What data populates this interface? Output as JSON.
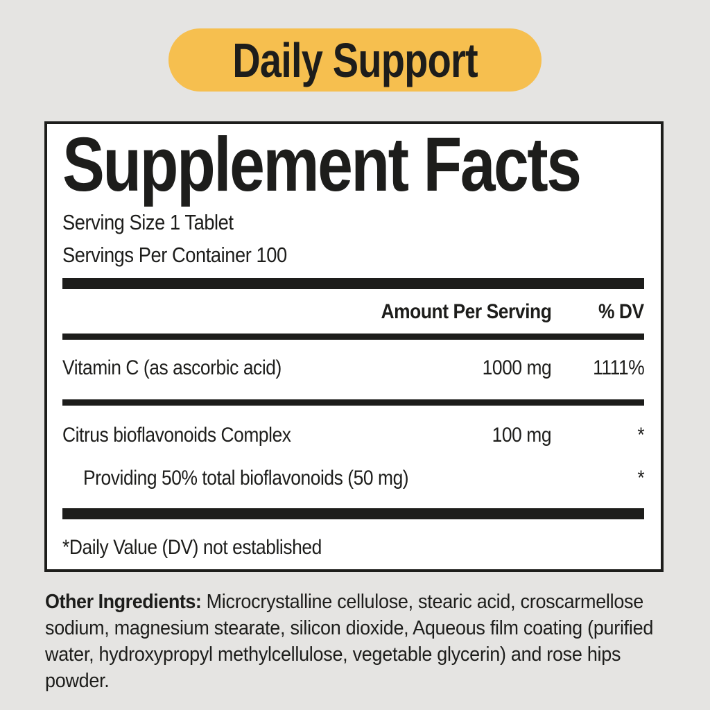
{
  "badge": {
    "label": "Daily Support"
  },
  "supplement_facts": {
    "title": "Supplement Facts",
    "serving_size": "Serving Size 1 Tablet",
    "servings_per_container": "Servings Per Container 100",
    "header": {
      "amount": "Amount Per Serving",
      "dv": "% DV"
    },
    "rows": [
      {
        "name": "Vitamin C (as ascorbic acid)",
        "amount": "1000 mg",
        "dv": "1111%"
      },
      {
        "name": "Citrus bioflavonoids Complex",
        "amount": "100 mg",
        "dv": "*"
      },
      {
        "name": "Providing 50% total bioflavonoids (50 mg)",
        "amount": "",
        "dv": "*"
      }
    ],
    "footnote": "*Daily Value (DV) not established"
  },
  "other_ingredients": {
    "label": "Other Ingredients:",
    "text": "Microcrystalline cellulose, stearic acid, croscarmellose sodium, magnesium stearate, silicon dioxide, Aqueous film coating (purified water, hydroxypropyl methylcellulose, vegetable glycerin) and rose hips powder."
  },
  "colors": {
    "page_bg": "#E5E4E2",
    "badge_bg": "#F6BF4F",
    "panel_bg": "#FFFFFF",
    "ink": "#1D1D1B"
  }
}
